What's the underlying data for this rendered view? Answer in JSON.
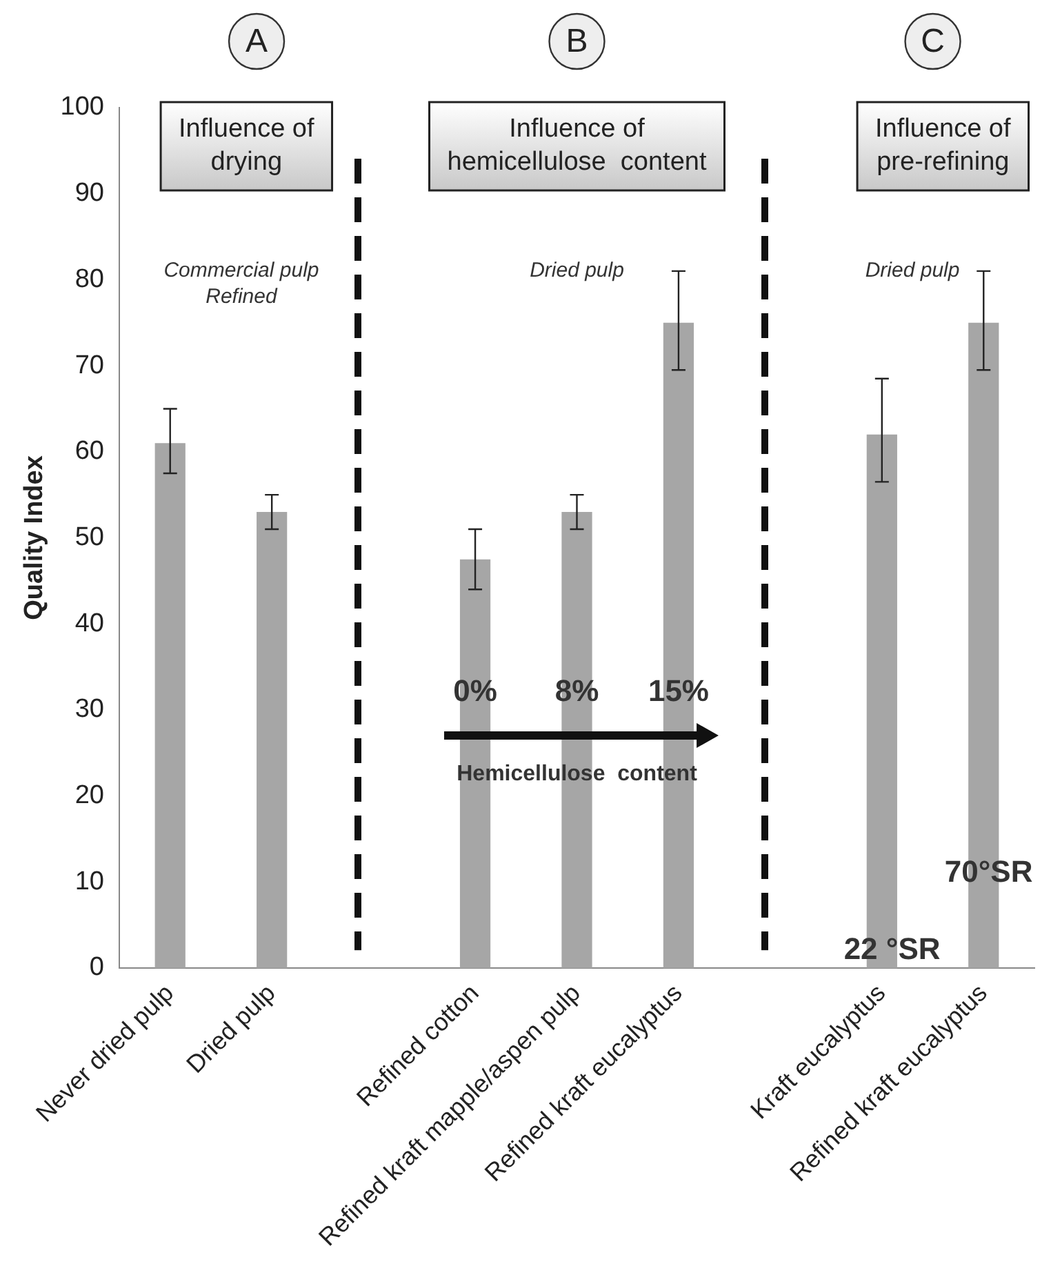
{
  "chart_data": {
    "type": "bar",
    "ylabel": "Quality Index",
    "categories": [
      "Never dried pulp",
      "Dried pulp",
      null,
      "Refined cotton",
      "Refined kraft mapple/aspen pulp",
      "Refined kraft eucalyptus",
      null,
      "Kraft eucalyptus",
      "Refined kraft eucalyptus"
    ],
    "values": [
      61,
      53,
      null,
      47.5,
      53,
      75,
      null,
      62,
      75
    ],
    "errors": [
      [
        57.5,
        65
      ],
      [
        51,
        55
      ],
      null,
      [
        44,
        51
      ],
      [
        51,
        55
      ],
      [
        69.5,
        81
      ],
      null,
      [
        56.5,
        68.5
      ],
      [
        69.5,
        81
      ]
    ],
    "color": "#a6a6a6",
    "ylim": [
      0,
      100
    ],
    "yticks": [
      0,
      10,
      20,
      30,
      40,
      50,
      60,
      70,
      80,
      90,
      100
    ],
    "grid": false,
    "legend": false,
    "annotations": [
      "A",
      "B",
      "C",
      "Influence of\ndrying",
      "Influence of\nhemicellulose  content",
      "Influence of\npre-refining",
      "Commercial pulp\nRefined",
      "Dried pulp",
      "Dried pulp",
      "0%",
      "8%",
      "15%",
      "Hemicellulose  content",
      "70°SR",
      "22 °SR"
    ]
  }
}
